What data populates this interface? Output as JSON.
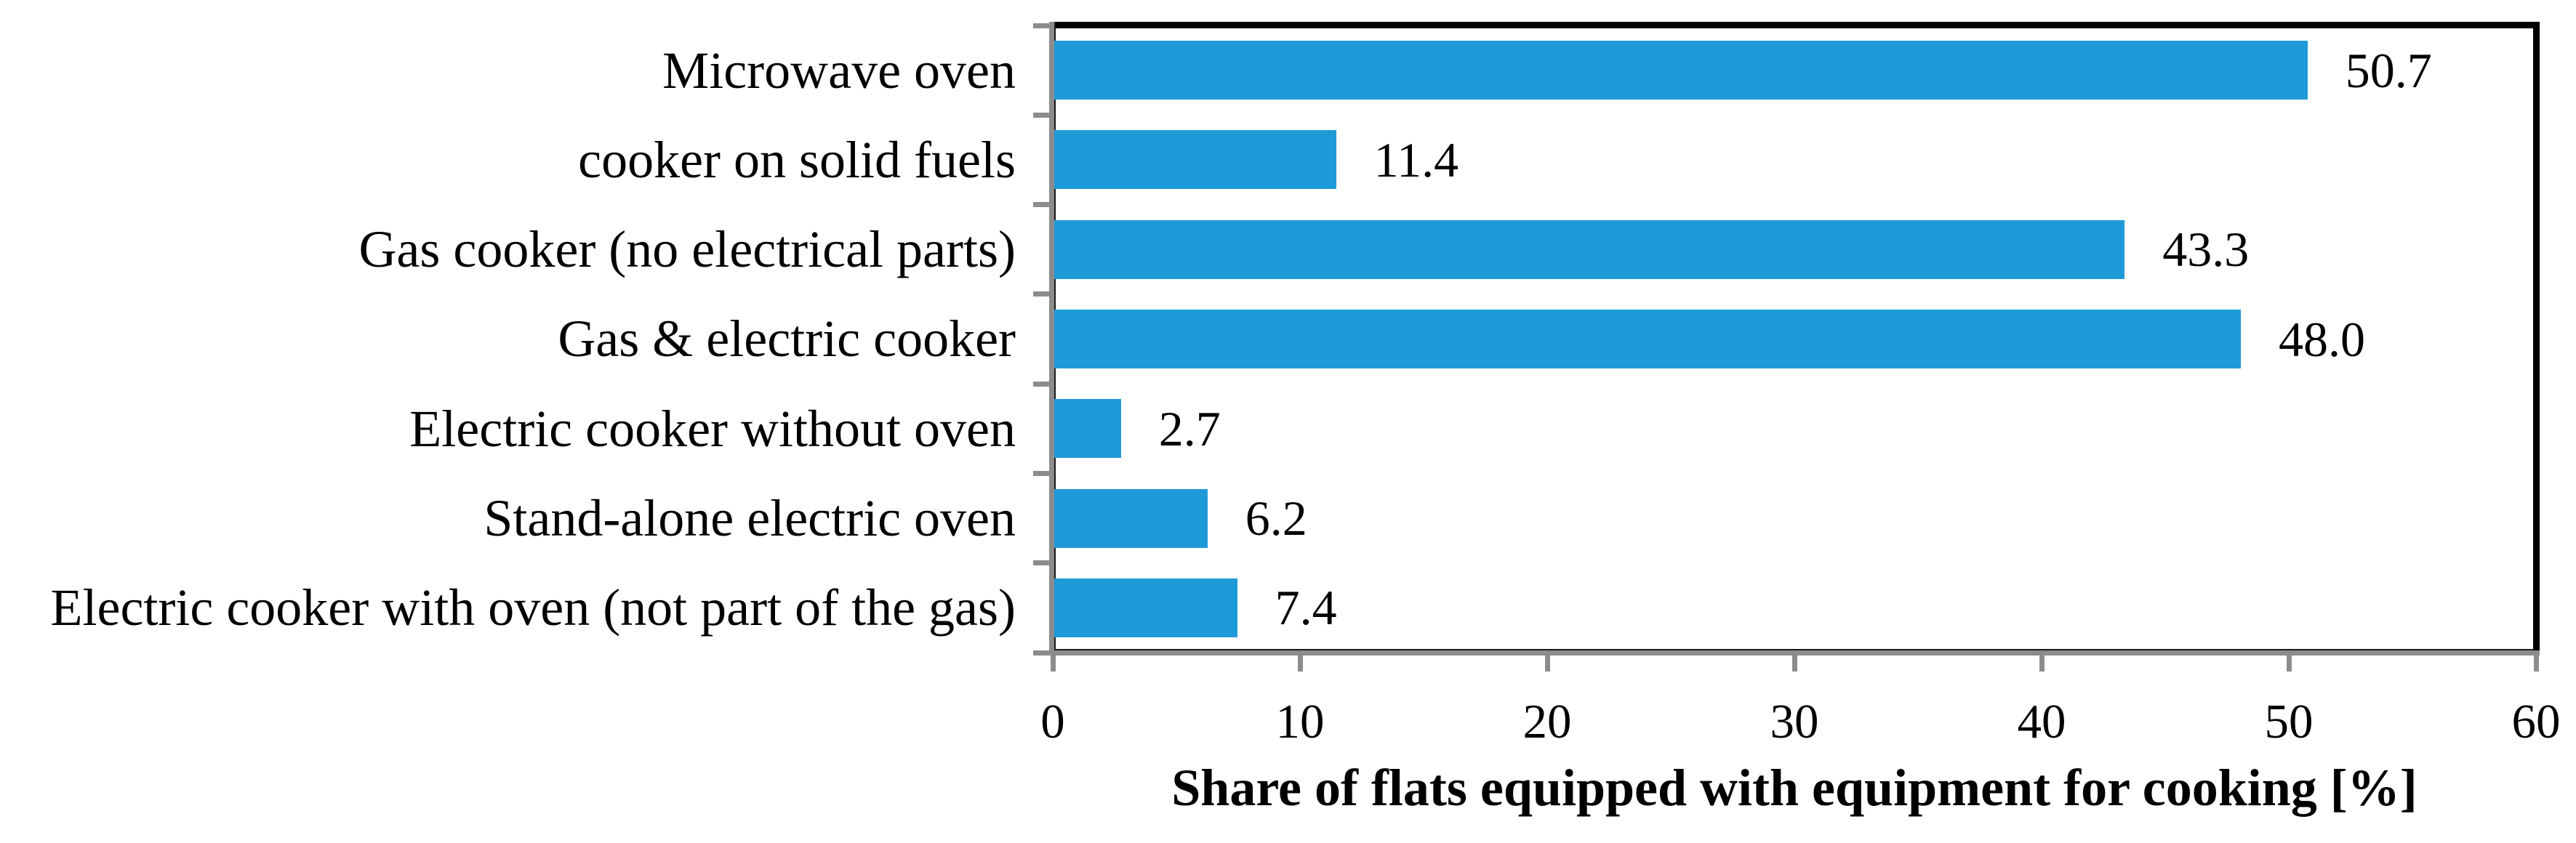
{
  "figure": {
    "background": "#FFFFFF"
  },
  "chart_data": {
    "type": "bar",
    "orientation": "horizontal",
    "title": "",
    "xlabel": "Share of flats equipped with equipment for cooking [%]",
    "ylabel": "",
    "categories": [
      "Microwave oven",
      "cooker on solid fuels",
      "Gas cooker (no electrical parts)",
      "Gas & electric cooker",
      "Electric cooker without oven",
      "Stand-alone electric oven",
      "Electric cooker with oven (not part of the gas)"
    ],
    "values": [
      50.7,
      11.4,
      43.3,
      48.0,
      2.7,
      6.2,
      7.4
    ],
    "value_labels": [
      "50.7",
      "11.4",
      "43.3",
      "48.0",
      "2.7",
      "6.2",
      "7.4"
    ],
    "xlim": [
      0,
      60
    ],
    "xticks": [
      0,
      10,
      20,
      30,
      40,
      50,
      60
    ],
    "grid": "off",
    "legend": "none",
    "data_labels": "outside-end",
    "colors": {
      "bar": "#1F9AD8",
      "axis_gray": "#8C8C8C",
      "border_black": "#000000",
      "text": "#000000"
    }
  }
}
